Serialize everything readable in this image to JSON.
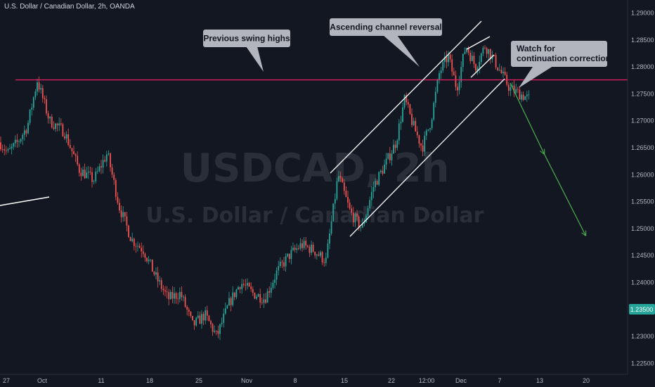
{
  "header": {
    "title": "U.S. Dollar / Canadian Dollar, 2h, OANDA"
  },
  "watermark": {
    "symbol": "USDCAD, 2h",
    "name": "U.S. Dollar / Canadian Dollar"
  },
  "colors": {
    "background": "#131722",
    "up": "#26a69a",
    "down": "#ef5350",
    "resistance": "#e91e63",
    "trendline": "#ffffff",
    "projection": "#4caf50",
    "callout": "#b2b5be",
    "price_badge": "#26a69a"
  },
  "chart_data": {
    "type": "candlestick",
    "title": "U.S. Dollar / Canadian Dollar, 2h, OANDA",
    "y_ticks": [
      "1.29000",
      "1.28500",
      "1.28000",
      "1.27500",
      "1.27000",
      "1.26500",
      "1.26000",
      "1.25500",
      "1.25000",
      "1.24500",
      "1.24000",
      "1.23500",
      "1.23000",
      "1.22500"
    ],
    "ylim": [
      1.2235,
      1.2915
    ],
    "x_ticks": [
      "27",
      "Oct",
      "11",
      "18",
      "25",
      "Nov",
      "8",
      "15",
      "22",
      "12:00",
      "Dec",
      "7",
      "13",
      "20"
    ],
    "last_price": "1.23500",
    "resistance_level": 1.2778,
    "price_path": [
      [
        "27",
        1.264
      ],
      [
        "27",
        1.266
      ],
      [
        "27",
        1.269
      ],
      [
        "27",
        1.2775
      ],
      [
        "Oct",
        1.27
      ],
      [
        "Oct",
        1.268
      ],
      [
        "Oct",
        1.261
      ],
      [
        "Oct",
        1.259
      ],
      [
        "11",
        1.264
      ],
      [
        "11",
        1.254
      ],
      [
        "11",
        1.248
      ],
      [
        "11",
        1.246
      ],
      [
        "18",
        1.241
      ],
      [
        "18",
        1.237
      ],
      [
        "18",
        1.238
      ],
      [
        "18",
        1.232
      ],
      [
        "25",
        1.234
      ],
      [
        "25",
        1.23
      ],
      [
        "25",
        1.236
      ],
      [
        "25",
        1.24
      ],
      [
        "Nov",
        1.238
      ],
      [
        "Nov",
        1.237
      ],
      [
        "Nov",
        1.242
      ],
      [
        "Nov",
        1.245
      ],
      [
        "8",
        1.247
      ],
      [
        "8",
        1.246
      ],
      [
        "8",
        1.244
      ],
      [
        "8",
        1.26
      ],
      [
        "15",
        1.253
      ],
      [
        "15",
        1.25
      ],
      [
        "15",
        1.258
      ],
      [
        "15",
        1.262
      ],
      [
        "22",
        1.266
      ],
      [
        "22",
        1.274
      ],
      [
        "22",
        1.269
      ],
      [
        "22",
        1.265
      ],
      [
        "12:00",
        1.27
      ],
      [
        "12:00",
        1.279
      ],
      [
        "12:00",
        1.282
      ],
      [
        "12:00",
        1.276
      ],
      [
        "Dec",
        1.284
      ],
      [
        "Dec",
        1.28
      ],
      [
        "Dec",
        1.284
      ],
      [
        "Dec",
        1.281
      ],
      [
        "7",
        1.276
      ],
      [
        "7",
        1.274
      ]
    ],
    "annotations": [
      {
        "text": "Previous swing highs"
      },
      {
        "text": "Ascending channel reversal"
      },
      {
        "text": "Watch for continuation correction",
        "lines": [
          "Watch for",
          "continuation correction"
        ]
      }
    ],
    "grid": false
  }
}
